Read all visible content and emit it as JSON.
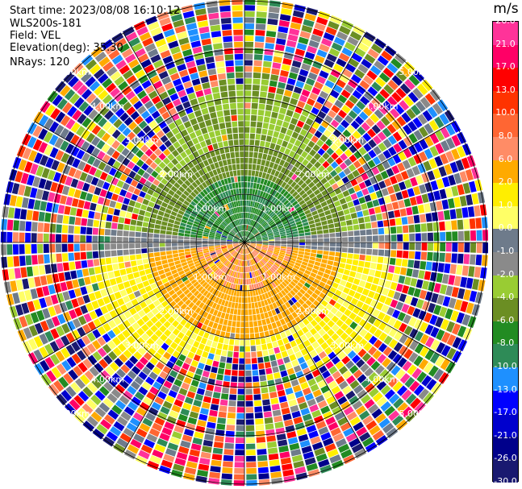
{
  "info": {
    "start_time": "Start time: 2023/08/08 16:10:12",
    "instrument": "WLS200s-181",
    "field": "Field: VEL",
    "elevation": "Elevation(deg): 35.30",
    "nrays": "NRays: 120"
  },
  "colorbar": {
    "unit": "m/s",
    "ticks": [
      "26.0",
      "21.0",
      "17.0",
      "13.0",
      "10.0",
      "8.0",
      "6.0",
      "2.0",
      "1.0",
      "0.0",
      "-1.0",
      "-2.0",
      "-4.0",
      "-6.0",
      "-8.0",
      "-10.0",
      "-13.0",
      "-17.0",
      "-21.0",
      "-26.0",
      "-30.0"
    ],
    "colors": [
      "#ff3399",
      "#ff0066",
      "#ff0000",
      "#ff3300",
      "#ff6633",
      "#ff8c66",
      "#ffaa00",
      "#ffee00",
      "#ffff66",
      "#6e7b8b",
      "#8a8a8a",
      "#99cc33",
      "#6b8e23",
      "#228b22",
      "#2e8b57",
      "#1e90ff",
      "#0000ff",
      "#0000cd",
      "#00008b",
      "#191970"
    ]
  },
  "chart_data": {
    "type": "heatmap",
    "title": "",
    "projection": "polar (PPI scan)",
    "field": "VEL",
    "unit": "m/s",
    "nrays": 120,
    "range_rings_km": [
      1.0,
      2.0,
      3.0,
      4.0,
      5.0
    ],
    "ring_label_suffix": "km",
    "ray_lines": 6,
    "value_range": [
      -30.0,
      26.0
    ],
    "pattern": {
      "near_range_north_half": "negative velocities (green/grey, about -2 to -8 m/s)",
      "near_range_south_half": "positive velocities (orange/yellow, about 2 to 8 m/s)",
      "beyond_3km": "noisy, all colors"
    }
  }
}
